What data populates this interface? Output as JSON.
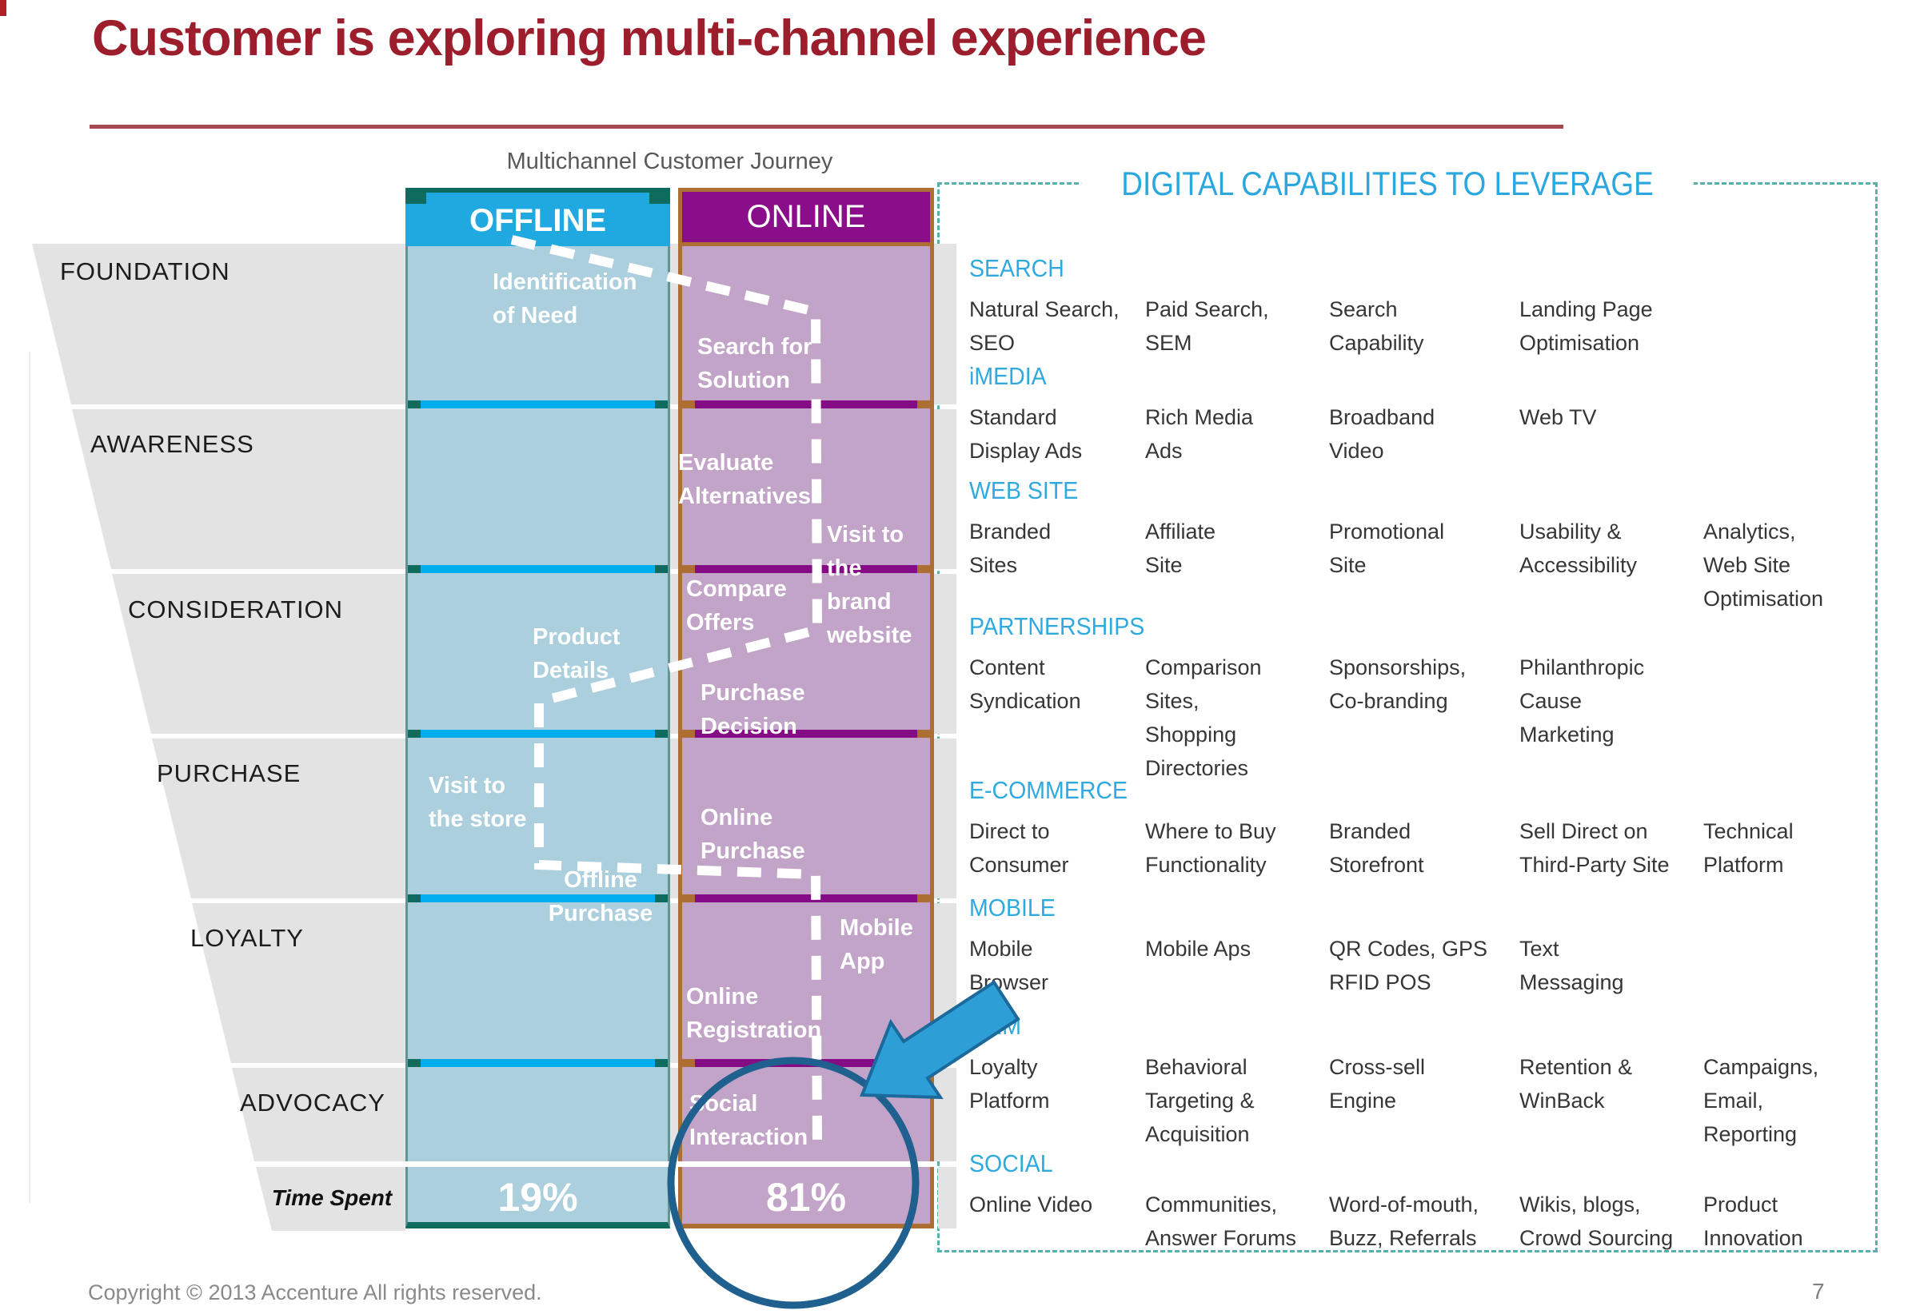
{
  "slide": {
    "title": "Customer is exploring multi-channel experience",
    "footer": "Copyright © 2013 Accenture  All rights reserved.",
    "page_number": "7"
  },
  "journey": {
    "caption": "Multichannel Customer Journey",
    "offline_label": "OFFLINE",
    "online_label": "ONLINE",
    "stages": [
      "FOUNDATION",
      "AWARENESS",
      "CONSIDERATION",
      "PURCHASE",
      "LOYALTY",
      "ADVOCACY"
    ],
    "time_spent_label": "Time Spent",
    "offline_steps": [
      {
        "text": "Identification\nof Need"
      },
      {
        "text": "Product\nDetails"
      },
      {
        "text": "Visit to\nthe store"
      },
      {
        "text": "Offline\nPurchase"
      }
    ],
    "online_steps": [
      {
        "text": "Search for\nSolution"
      },
      {
        "text": "Evaluate\nAlternatives"
      },
      {
        "text": "Visit to\nthe\nbrand\nwebsite"
      },
      {
        "text": "Compare\nOffers"
      },
      {
        "text": "Purchase\nDecision"
      },
      {
        "text": "Online\nPurchase"
      },
      {
        "text": "Mobile\nApp"
      },
      {
        "text": "Online\nRegistration"
      },
      {
        "text": "Social\nInteraction"
      }
    ],
    "time_spent_offline": "19%",
    "time_spent_online": "81%"
  },
  "capabilities": {
    "title": "DIGITAL CAPABILITIES TO LEVERAGE",
    "sections": [
      {
        "name": "SEARCH",
        "items": [
          {
            "col": 0,
            "text": "Natural Search,\nSEO"
          },
          {
            "col": 1,
            "text": "Paid Search,\nSEM"
          },
          {
            "col": 2,
            "text": "Search\nCapability"
          },
          {
            "col": 3,
            "text": "Landing Page\nOptimisation"
          }
        ]
      },
      {
        "name": "iMEDIA",
        "items": [
          {
            "col": 0,
            "text": "Standard\nDisplay Ads"
          },
          {
            "col": 1,
            "text": "Rich Media\nAds"
          },
          {
            "col": 2,
            "text": "Broadband\nVideo"
          },
          {
            "col": 3,
            "text": "Web TV"
          }
        ]
      },
      {
        "name": "WEB SITE",
        "items": [
          {
            "col": 0,
            "text": "Branded\nSites"
          },
          {
            "col": 1,
            "text": "Affiliate\nSite"
          },
          {
            "col": 2,
            "text": "Promotional\nSite"
          },
          {
            "col": 3,
            "text": "Usability &\nAccessibility"
          },
          {
            "col": 4,
            "text": "Analytics,\nWeb Site\nOptimisation"
          }
        ]
      },
      {
        "name": "PARTNERSHIPS",
        "items": [
          {
            "col": 0,
            "text": "Content\nSyndication"
          },
          {
            "col": 1,
            "text": "Comparison\nSites,\nShopping\nDirectories"
          },
          {
            "col": 2,
            "text": "Sponsorships,\nCo-branding"
          },
          {
            "col": 3,
            "text": "Philanthropic\nCause\nMarketing"
          }
        ]
      },
      {
        "name": "E-COMMERCE",
        "items": [
          {
            "col": 0,
            "text": "Direct to\nConsumer"
          },
          {
            "col": 1,
            "text": "Where to Buy\nFunctionality"
          },
          {
            "col": 2,
            "text": "Branded\nStorefront"
          },
          {
            "col": 3,
            "text": "Sell Direct on\nThird-Party Site"
          },
          {
            "col": 4,
            "text": "Technical\nPlatform"
          }
        ]
      },
      {
        "name": "MOBILE",
        "items": [
          {
            "col": 0,
            "text": "Mobile\nBrowser"
          },
          {
            "col": 1,
            "text": "Mobile Aps"
          },
          {
            "col": 2,
            "text": "QR Codes, GPS\nRFID POS"
          },
          {
            "col": 3,
            "text": "Text\nMessaging"
          }
        ]
      },
      {
        "name": "CRM",
        "items": [
          {
            "col": 0,
            "text": "Loyalty\nPlatform"
          },
          {
            "col": 1,
            "text": "Behavioral\nTargeting &\nAcquisition"
          },
          {
            "col": 2,
            "text": "Cross-sell\nEngine"
          },
          {
            "col": 3,
            "text": "Retention &\nWinBack"
          },
          {
            "col": 4,
            "text": "Campaigns,\nEmail,\nReporting"
          }
        ]
      },
      {
        "name": "SOCIAL",
        "items": [
          {
            "col": 0,
            "text": "Online Video"
          },
          {
            "col": 1,
            "text": "Communities,\nAnswer Forums"
          },
          {
            "col": 2,
            "text": "Word-of-mouth,\nBuzz, Referrals"
          },
          {
            "col": 3,
            "text": "Wikis, blogs,\nCrowd Sourcing"
          },
          {
            "col": 4,
            "text": "Product\nInnovation"
          }
        ]
      }
    ]
  },
  "colors": {
    "title_red": "#9C1E2C",
    "offline_header": "#1FA9E0",
    "online_header": "#8A0E8A",
    "offline_body": "#ACCFDE",
    "online_body": "#C2A4C8",
    "divider_cyan": "#00AEEF",
    "divider_purple": "#860C86",
    "teal_dark": "#0E6B5E",
    "tan_border": "#AC6E33",
    "band_gray": "#E3E3E3",
    "panel_teal": "#2AA7DE",
    "panel_border_teal": "#56B1AC",
    "circle_blue": "#20608F",
    "arrow_blue": "#2E9ED7"
  }
}
